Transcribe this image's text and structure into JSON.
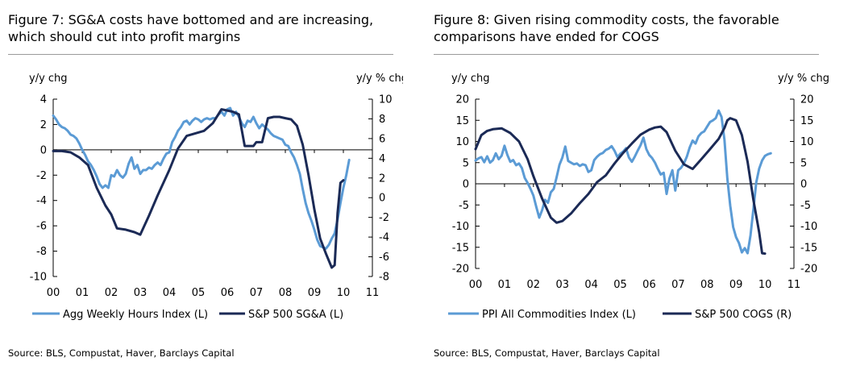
{
  "chart_data": [
    {
      "type": "line",
      "title": "Figure 7: SG&A costs have bottomed and are increasing, which should cut into profit margins",
      "source": "Source: BLS, Compustat, Haver, Barclays Capital",
      "left_unit": "y/y chg",
      "right_unit": "y/y % chg",
      "x_ticks": [
        "00",
        "01",
        "02",
        "03",
        "04",
        "05",
        "06",
        "07",
        "08",
        "09",
        "10",
        "11"
      ],
      "xlim": [
        0,
        11
      ],
      "left_ylim": [
        -10,
        4
      ],
      "left_ticks": [
        "4",
        "2",
        "0",
        "-2",
        "-4",
        "-6",
        "-8",
        "-10"
      ],
      "right_ylim": [
        -8,
        10
      ],
      "right_ticks": [
        "10",
        "8",
        "6",
        "4",
        "2",
        "0",
        "-2",
        "-4",
        "-6",
        "-8"
      ],
      "legend_position": "bottom",
      "series": [
        {
          "name": "Agg Weekly Hours Index (L)",
          "axis": "left",
          "color": "#5b9bd5",
          "x": [
            0.0,
            0.1,
            0.2,
            0.3,
            0.4,
            0.5,
            0.6,
            0.7,
            0.8,
            0.9,
            1.0,
            1.1,
            1.2,
            1.3,
            1.4,
            1.5,
            1.6,
            1.7,
            1.8,
            1.9,
            2.0,
            2.1,
            2.2,
            2.3,
            2.4,
            2.5,
            2.6,
            2.7,
            2.8,
            2.9,
            3.0,
            3.1,
            3.2,
            3.3,
            3.4,
            3.5,
            3.6,
            3.7,
            3.8,
            3.9,
            4.0,
            4.1,
            4.2,
            4.3,
            4.4,
            4.5,
            4.6,
            4.7,
            4.8,
            4.9,
            5.0,
            5.1,
            5.2,
            5.3,
            5.4,
            5.5,
            5.6,
            5.7,
            5.8,
            5.9,
            6.0,
            6.1,
            6.2,
            6.3,
            6.4,
            6.5,
            6.6,
            6.7,
            6.8,
            6.9,
            7.0,
            7.1,
            7.2,
            7.3,
            7.4,
            7.5,
            7.6,
            7.7,
            7.8,
            7.9,
            8.0,
            8.1,
            8.2,
            8.3,
            8.4,
            8.5,
            8.6,
            8.7,
            8.8,
            8.9,
            9.0,
            9.1,
            9.2,
            9.3,
            9.4,
            9.5,
            9.6,
            9.7,
            9.8,
            9.9,
            10.0,
            10.1,
            10.2
          ],
          "values": [
            2.7,
            2.4,
            2.0,
            1.8,
            1.7,
            1.5,
            1.2,
            1.1,
            0.9,
            0.5,
            0.0,
            -0.4,
            -0.9,
            -1.2,
            -1.6,
            -2.1,
            -2.7,
            -3.0,
            -2.8,
            -3.0,
            -2.0,
            -2.1,
            -1.6,
            -2.0,
            -2.2,
            -1.9,
            -1.1,
            -0.6,
            -1.5,
            -1.2,
            -1.9,
            -1.6,
            -1.6,
            -1.4,
            -1.5,
            -1.2,
            -1.0,
            -1.2,
            -0.7,
            -0.3,
            -0.2,
            0.6,
            1.0,
            1.5,
            1.8,
            2.2,
            2.3,
            2.0,
            2.3,
            2.5,
            2.4,
            2.2,
            2.4,
            2.5,
            2.4,
            2.5,
            2.5,
            2.8,
            3.0,
            2.7,
            3.2,
            3.3,
            2.7,
            3.0,
            2.6,
            2.1,
            1.8,
            2.3,
            2.2,
            2.6,
            2.1,
            1.7,
            2.0,
            1.8,
            1.6,
            1.3,
            1.1,
            1.0,
            0.9,
            0.8,
            0.4,
            0.3,
            -0.2,
            -0.6,
            -1.2,
            -1.9,
            -3.1,
            -4.2,
            -5.0,
            -5.6,
            -6.3,
            -7.1,
            -7.6,
            -7.7,
            -7.8,
            -7.5,
            -7.0,
            -6.6,
            -5.5,
            -4.2,
            -3.0,
            -2.0,
            -0.8
          ]
        },
        {
          "name": "S&P 500 SG&A (L)",
          "axis": "left",
          "color": "#1b2a56",
          "x": [
            0.0,
            0.3,
            0.6,
            0.9,
            1.2,
            1.5,
            1.8,
            2.0,
            2.2,
            2.5,
            2.8,
            3.0,
            3.3,
            3.6,
            4.0,
            4.3,
            4.6,
            4.9,
            5.2,
            5.5,
            5.8,
            6.0,
            6.2,
            6.4,
            6.6,
            6.9,
            7.0,
            7.2,
            7.4,
            7.6,
            7.8,
            8.0,
            8.2,
            8.4,
            8.6,
            8.8,
            9.0,
            9.2,
            9.4,
            9.6,
            9.7,
            9.8,
            9.9,
            10.0
          ],
          "values": [
            -0.1,
            -0.1,
            -0.2,
            -0.6,
            -1.2,
            -3.0,
            -4.4,
            -5.1,
            -6.2,
            -6.3,
            -6.5,
            -6.7,
            -5.2,
            -3.6,
            -1.6,
            0.1,
            1.1,
            1.3,
            1.5,
            2.1,
            3.2,
            3.1,
            3.0,
            2.8,
            0.3,
            0.3,
            0.6,
            0.6,
            2.5,
            2.6,
            2.6,
            2.5,
            2.4,
            1.9,
            0.4,
            -2.0,
            -4.7,
            -7.0,
            -8.2,
            -9.3,
            -9.1,
            -5.0,
            -2.6,
            -2.4
          ]
        }
      ]
    },
    {
      "type": "line",
      "title": "Figure 8: Given rising commodity costs, the favorable comparisons have ended for COGS",
      "source": "Source: BLS, Compustat, Haver, Barclays Capital",
      "left_unit": "y/y chg",
      "right_unit": "y/y % chg",
      "x_ticks": [
        "00",
        "01",
        "02",
        "03",
        "04",
        "05",
        "06",
        "07",
        "08",
        "09",
        "10",
        "11"
      ],
      "xlim": [
        0,
        11
      ],
      "left_ylim": [
        -20,
        20
      ],
      "left_ticks": [
        "20",
        "15",
        "10",
        "5",
        "0",
        "-5",
        "-10",
        "-15",
        "-20"
      ],
      "right_ylim": [
        -20,
        20
      ],
      "right_ticks": [
        "20",
        "15",
        "10",
        "5",
        "0",
        "-5",
        "-10",
        "-15",
        "-20"
      ],
      "legend_position": "bottom",
      "series": [
        {
          "name": "PPI All Commodities Index (L)",
          "axis": "left",
          "color": "#5b9bd5",
          "x": [
            0.0,
            0.1,
            0.2,
            0.3,
            0.4,
            0.5,
            0.6,
            0.7,
            0.8,
            0.9,
            1.0,
            1.1,
            1.2,
            1.3,
            1.4,
            1.5,
            1.6,
            1.7,
            1.8,
            1.9,
            2.0,
            2.1,
            2.2,
            2.3,
            2.4,
            2.5,
            2.6,
            2.7,
            2.8,
            2.9,
            3.0,
            3.1,
            3.2,
            3.3,
            3.4,
            3.5,
            3.6,
            3.7,
            3.8,
            3.9,
            4.0,
            4.1,
            4.2,
            4.3,
            4.4,
            4.5,
            4.6,
            4.7,
            4.8,
            4.9,
            5.0,
            5.1,
            5.2,
            5.3,
            5.4,
            5.5,
            5.6,
            5.7,
            5.8,
            5.9,
            6.0,
            6.1,
            6.2,
            6.3,
            6.4,
            6.5,
            6.6,
            6.7,
            6.8,
            6.9,
            7.0,
            7.1,
            7.2,
            7.3,
            7.4,
            7.5,
            7.6,
            7.7,
            7.8,
            7.9,
            8.0,
            8.1,
            8.2,
            8.3,
            8.4,
            8.5,
            8.6,
            8.7,
            8.8,
            8.9,
            9.0,
            9.1,
            9.2,
            9.3,
            9.4,
            9.5,
            9.6,
            9.7,
            9.8,
            9.9,
            10.0,
            10.1,
            10.2
          ],
          "values": [
            5.5,
            6.0,
            6.3,
            5.1,
            6.5,
            5.0,
            5.6,
            7.2,
            5.8,
            6.6,
            9.0,
            6.8,
            5.2,
            5.6,
            4.4,
            4.8,
            3.7,
            1.4,
            0.2,
            -1.2,
            -2.8,
            -5.5,
            -8.0,
            -6.2,
            -3.8,
            -4.5,
            -2.0,
            -1.2,
            1.5,
            4.5,
            6.2,
            8.8,
            5.4,
            5.0,
            4.6,
            4.8,
            4.2,
            4.6,
            4.4,
            2.8,
            3.2,
            5.6,
            6.4,
            7.0,
            7.3,
            8.0,
            8.3,
            8.9,
            7.8,
            6.3,
            7.1,
            7.6,
            8.4,
            6.2,
            5.2,
            6.4,
            7.8,
            9.1,
            10.9,
            8.2,
            6.8,
            6.1,
            5.0,
            3.5,
            2.2,
            2.6,
            -2.4,
            1.3,
            3.2,
            -1.6,
            3.2,
            3.8,
            4.8,
            6.4,
            8.6,
            10.2,
            9.5,
            11.2,
            12.0,
            12.4,
            13.5,
            14.6,
            15.0,
            15.5,
            17.3,
            15.8,
            10.4,
            1.2,
            -5.2,
            -10.2,
            -12.6,
            -14.0,
            -16.2,
            -15.2,
            -16.4,
            -12.2,
            -6.0,
            0.4,
            3.6,
            5.5,
            6.6,
            7.0,
            7.2
          ]
        },
        {
          "name": "S&P 500 COGS (R)",
          "axis": "right",
          "color": "#1b2a56",
          "x": [
            0.0,
            0.2,
            0.4,
            0.6,
            0.9,
            1.2,
            1.5,
            1.8,
            2.0,
            2.3,
            2.6,
            2.8,
            3.0,
            3.3,
            3.6,
            3.9,
            4.2,
            4.5,
            4.8,
            5.1,
            5.4,
            5.7,
            6.0,
            6.2,
            6.4,
            6.6,
            6.9,
            7.2,
            7.5,
            7.8,
            8.1,
            8.4,
            8.6,
            8.7,
            8.8,
            9.0,
            9.2,
            9.4,
            9.6,
            9.8,
            9.9,
            10.0
          ],
          "values": [
            8.2,
            11.5,
            12.5,
            12.9,
            13.1,
            12.0,
            10.0,
            5.8,
            1.8,
            -3.5,
            -8.0,
            -9.2,
            -8.8,
            -7.0,
            -4.6,
            -2.4,
            0.4,
            2.0,
            4.8,
            7.3,
            9.5,
            11.6,
            12.8,
            13.3,
            13.5,
            12.2,
            7.8,
            4.6,
            3.5,
            5.8,
            8.2,
            10.6,
            13.2,
            15.0,
            15.5,
            15.0,
            11.5,
            5.2,
            -3.8,
            -11.5,
            -16.4,
            -16.5
          ]
        }
      ]
    }
  ]
}
